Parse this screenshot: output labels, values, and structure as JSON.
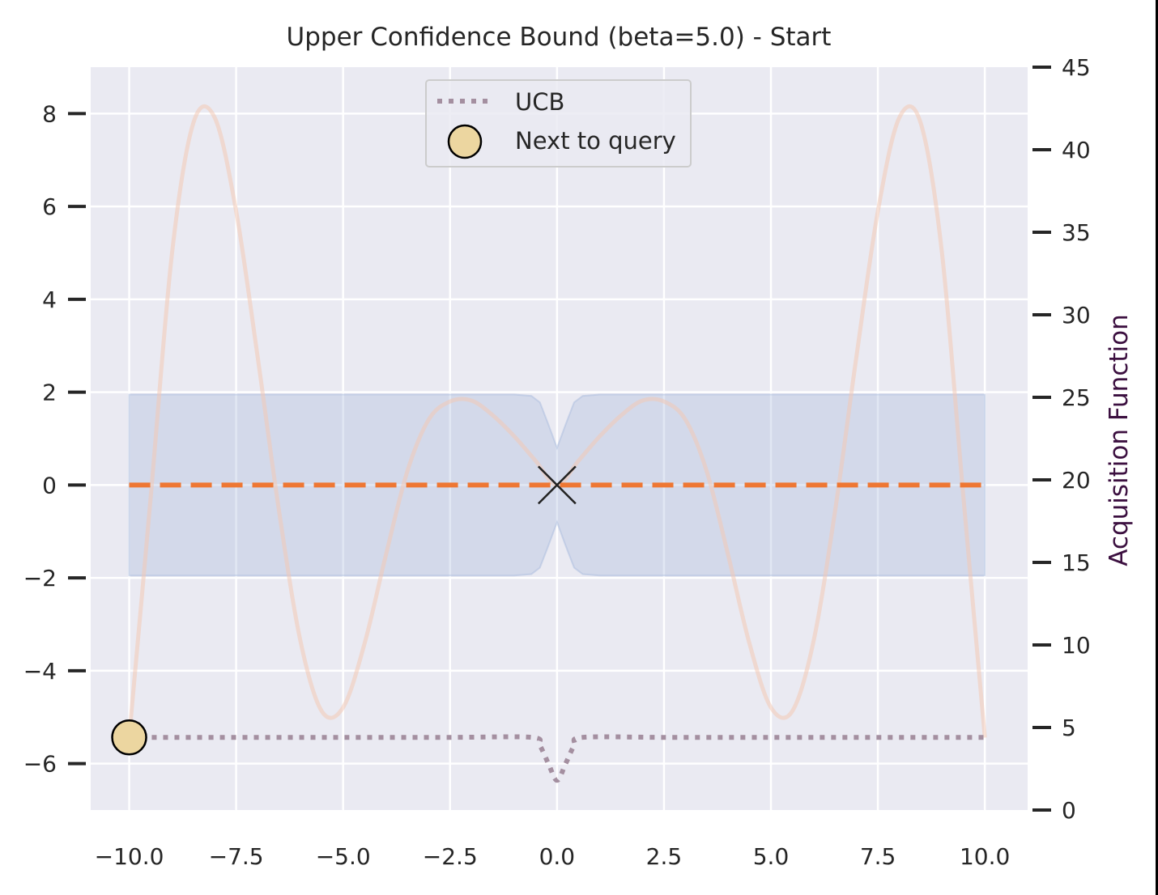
{
  "chart_data": {
    "type": "line",
    "title": "Upper Confidence Bound (beta=5.0) - Start",
    "xlabel": "",
    "ylabel": "",
    "ylabel_right": "Acquisition Function",
    "xlim": [
      -10.9,
      11.0
    ],
    "ylim": [
      -7.0,
      9.0
    ],
    "ylim_right": [
      0,
      45
    ],
    "x_ticks": [
      -10.0,
      -7.5,
      -5.0,
      -2.5,
      0.0,
      2.5,
      5.0,
      7.5,
      10.0
    ],
    "x_tick_labels": [
      "−10.0",
      "−7.5",
      "−5.0",
      "−2.5",
      "0.0",
      "2.5",
      "5.0",
      "7.5",
      "10.0"
    ],
    "y_ticks": [
      -6,
      -4,
      -2,
      0,
      2,
      4,
      6,
      8
    ],
    "y_tick_labels": [
      "−6",
      "−4",
      "−2",
      "0",
      "2",
      "4",
      "6",
      "8"
    ],
    "y_ticks_right": [
      0,
      5,
      10,
      15,
      20,
      25,
      30,
      35,
      40,
      45
    ],
    "y_tick_labels_right": [
      "0",
      "5",
      "10",
      "15",
      "20",
      "25",
      "30",
      "35",
      "40",
      "45"
    ],
    "grid": true,
    "legend_placement": "upper center",
    "series": [
      {
        "name": "UCB",
        "axis": "right",
        "style": "dotted",
        "color": "#a48fa0",
        "x": [
          -10.0,
          -7.5,
          -5.0,
          -2.5,
          -0.6,
          -0.4,
          -0.2,
          0.0,
          0.2,
          0.4,
          0.6,
          2.5,
          5.0,
          7.5,
          10.0
        ],
        "y": [
          4.4,
          4.4,
          4.4,
          4.4,
          4.4,
          3.9,
          2.8,
          1.8,
          2.8,
          3.9,
          4.4,
          4.4,
          4.4,
          4.4,
          4.4
        ]
      },
      {
        "axis": "left",
        "style": "dashed",
        "role": "mean",
        "color": "#ee7733",
        "x": [
          -10.0,
          10.0
        ],
        "y": [
          0.0,
          0.0
        ]
      },
      {
        "axis": "left",
        "style": "band",
        "role": "confidence",
        "color": "#aabbdd",
        "x": [
          -10.0,
          -5.0,
          -1.0,
          -0.6,
          -0.4,
          -0.2,
          0.0,
          0.2,
          0.4,
          0.6,
          1.0,
          5.0,
          10.0
        ],
        "upper": [
          1.95,
          1.95,
          1.95,
          1.92,
          1.78,
          1.3,
          0.8,
          1.3,
          1.78,
          1.92,
          1.95,
          1.95,
          1.95
        ],
        "lower": [
          -1.95,
          -1.95,
          -1.95,
          -1.92,
          -1.78,
          -1.3,
          -0.8,
          -1.3,
          -1.78,
          -1.92,
          -1.95,
          -1.95,
          -1.95
        ]
      },
      {
        "axis": "left",
        "style": "solid",
        "role": "objective",
        "color": "#f3c8b4",
        "x": [
          -10.0,
          -9.5,
          -9.0,
          -8.5,
          -8.0,
          -7.5,
          -7.0,
          -6.5,
          -6.0,
          -5.5,
          -5.0,
          -4.5,
          -4.0,
          -3.5,
          -3.0,
          -2.5,
          -2.0,
          -1.5,
          -1.0,
          -0.5,
          0.0,
          0.5,
          1.0,
          1.5,
          2.0,
          2.5,
          3.0,
          3.5,
          4.0,
          4.5,
          5.0,
          5.5,
          6.0,
          6.5,
          7.0,
          7.5,
          8.0,
          8.5,
          9.0,
          9.5,
          10.0
        ],
        "y": [
          -5.44,
          -0.28,
          4.99,
          7.8,
          7.91,
          5.9,
          2.78,
          -0.55,
          -3.35,
          -4.87,
          -4.79,
          -3.42,
          -1.51,
          0.29,
          1.41,
          1.8,
          1.82,
          1.5,
          1.05,
          0.52,
          0.0,
          0.52,
          1.05,
          1.5,
          1.82,
          1.8,
          1.41,
          0.29,
          -1.51,
          -3.42,
          -4.79,
          -4.87,
          -3.35,
          -0.55,
          2.78,
          5.9,
          7.91,
          7.8,
          4.99,
          -0.28,
          -5.44
        ]
      }
    ],
    "markers": [
      {
        "role": "observation",
        "symbol": "x",
        "axis": "left",
        "x": 0.0,
        "y": 0.0,
        "color": "#222222"
      },
      {
        "name": "Next to query",
        "symbol": "circle",
        "axis": "right",
        "x": -10.0,
        "y": 4.4,
        "color": "#ecd6a0"
      }
    ],
    "legend": [
      {
        "label": "UCB",
        "style": "dotted",
        "color": "#a48fa0"
      },
      {
        "label": "Next to query",
        "style": "circle",
        "color": "#ecd6a0"
      }
    ]
  }
}
